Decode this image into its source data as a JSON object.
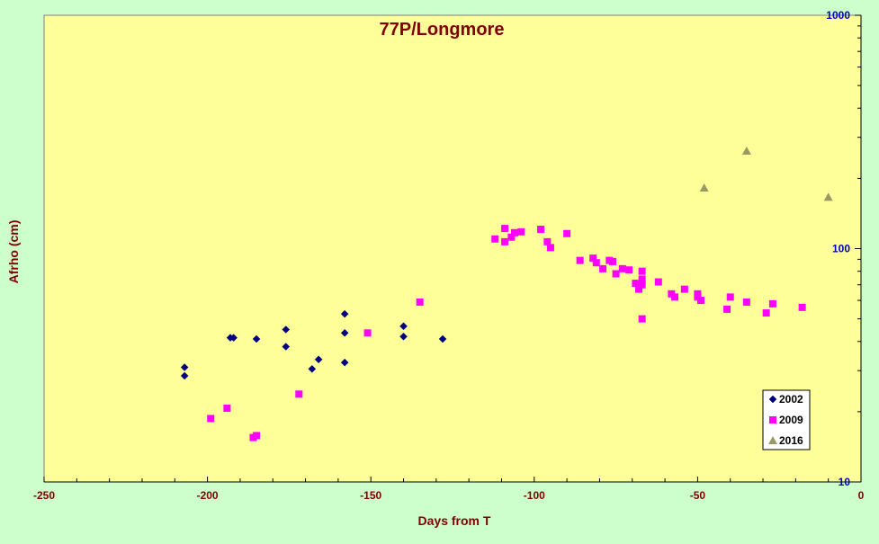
{
  "chart_data": {
    "type": "scatter",
    "title": "77P/Longmore",
    "xlabel": "Days from T",
    "ylabel": "Afrho (cm)",
    "xlim": [
      -250,
      0
    ],
    "ylim": [
      10,
      1000
    ],
    "y_scale": "log",
    "x_ticks": [
      "-250",
      "-200",
      "-150",
      "-100",
      "-50",
      "0"
    ],
    "y_ticks": [
      "10",
      "100",
      "1000"
    ],
    "grid": false,
    "legend_position": "bottom-right",
    "colors": {
      "page_background": "#ccffcc",
      "plot_background": "#ffff99",
      "title": "#800000",
      "axis_labels": "#800000",
      "x_tick_labels": "#800000",
      "y_tick_labels": "#0000cc"
    },
    "series": [
      {
        "name": "2002",
        "marker": "diamond",
        "color": "#000080",
        "points": [
          [
            -207,
            31
          ],
          [
            -207,
            28.5
          ],
          [
            -193,
            41.5
          ],
          [
            -192,
            41.5
          ],
          [
            -185,
            41
          ],
          [
            -176,
            45
          ],
          [
            -176,
            38
          ],
          [
            -168,
            30.5
          ],
          [
            -166,
            33.5
          ],
          [
            -158,
            52.5
          ],
          [
            -158,
            43.5
          ],
          [
            -158,
            32.5
          ],
          [
            -140,
            46.5
          ],
          [
            -140,
            42
          ],
          [
            -128,
            41
          ]
        ]
      },
      {
        "name": "2009",
        "marker": "square",
        "color": "#ff00ff",
        "points": [
          [
            -199,
            18.7
          ],
          [
            -194,
            20.7
          ],
          [
            -186,
            15.5
          ],
          [
            -185,
            15.8
          ],
          [
            -172,
            23.8
          ],
          [
            -151,
            43.5
          ],
          [
            -135,
            59
          ],
          [
            -112,
            110
          ],
          [
            -109,
            122
          ],
          [
            -109,
            107
          ],
          [
            -107,
            112
          ],
          [
            -106,
            117
          ],
          [
            -104,
            118
          ],
          [
            -98,
            121
          ],
          [
            -96,
            107
          ],
          [
            -95,
            101
          ],
          [
            -90,
            116
          ],
          [
            -86,
            89
          ],
          [
            -82,
            91
          ],
          [
            -81,
            87
          ],
          [
            -79,
            82
          ],
          [
            -77,
            89
          ],
          [
            -76,
            88
          ],
          [
            -75,
            78
          ],
          [
            -73,
            82
          ],
          [
            -71,
            81
          ],
          [
            -69,
            71
          ],
          [
            -68,
            67
          ],
          [
            -67,
            80
          ],
          [
            -67,
            74
          ],
          [
            -67,
            70
          ],
          [
            -67,
            50
          ],
          [
            -62,
            72
          ],
          [
            -58,
            64
          ],
          [
            -57,
            62
          ],
          [
            -54,
            67
          ],
          [
            -50,
            64
          ],
          [
            -50,
            62
          ],
          [
            -49,
            60
          ],
          [
            -41,
            55
          ],
          [
            -40,
            62
          ],
          [
            -35,
            59
          ],
          [
            -29,
            53
          ],
          [
            -27,
            58
          ],
          [
            -18,
            56
          ]
        ]
      },
      {
        "name": "2016",
        "marker": "triangle",
        "color": "#999966",
        "points": [
          [
            -48,
            182
          ],
          [
            -35,
            262
          ],
          [
            -10,
            166
          ]
        ]
      }
    ]
  }
}
